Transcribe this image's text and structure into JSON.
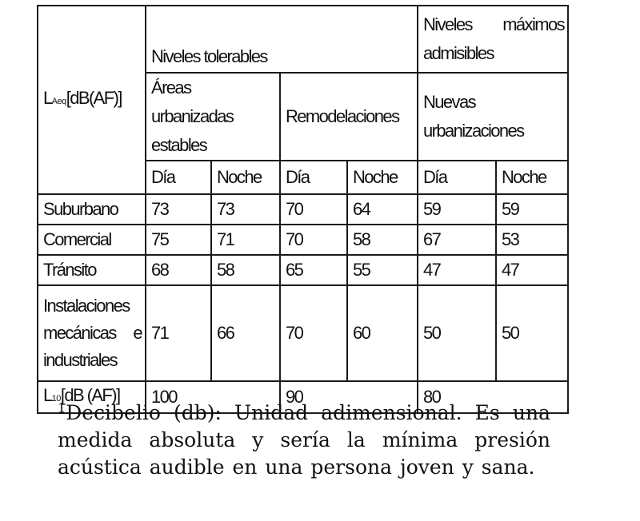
{
  "table": {
    "header": {
      "corner_label_main": "L",
      "corner_label_sub": "Aeq",
      "corner_label_unit": "[dB(AF)]",
      "group_tolerable": "Niveles tolerables",
      "group_max_word1": "Niveles",
      "group_max_word2": "máximos",
      "group_max_word3": "admisibles",
      "sub_areas": "Áreas urbanizadas estables",
      "sub_remodel": "Remodelaciones",
      "sub_nuevas": "Nuevas urbanizaciones",
      "day": "Día",
      "night": "Noche"
    },
    "rows": [
      {
        "label": "Suburbano",
        "values": [
          "73",
          "73",
          "70",
          "64",
          "59",
          "59"
        ]
      },
      {
        "label": "Comercial",
        "values": [
          "75",
          "71",
          "70",
          "58",
          "67",
          "53"
        ]
      },
      {
        "label": "Tránsito",
        "values": [
          "68",
          "58",
          "65",
          "55",
          "47",
          "47"
        ]
      }
    ],
    "industrial_row": {
      "label_line1": "Instalaciones",
      "label_line2a": "mecánicas",
      "label_line2b": "e",
      "label_line3": "industriales",
      "values": [
        "71",
        "66",
        "70",
        "60",
        "50",
        "50"
      ]
    },
    "l10_row": {
      "label_main": "L",
      "label_sub": "10",
      "label_unit": "[dB (AF)]",
      "values": [
        "100",
        "90",
        "80"
      ]
    }
  },
  "footnote": {
    "marker": "1",
    "text": "Decibelio (db): Unidad adimensional. Es una medida absoluta y sería la mínima presión acústica audible en una persona joven y sana."
  }
}
